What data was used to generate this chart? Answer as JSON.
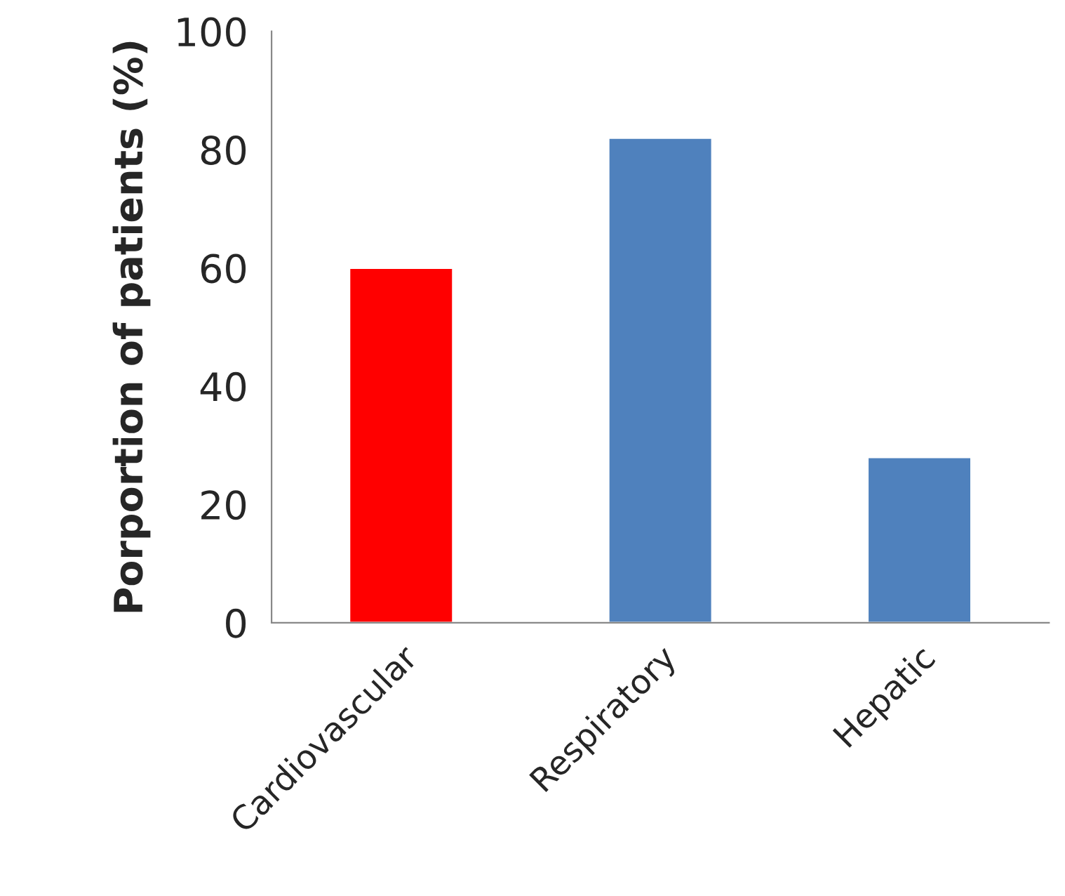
{
  "chart_data": {
    "type": "bar",
    "ylabel": "Porportion of patients (%)",
    "categories": [
      "Cardiovascular",
      "Respiratory",
      "Hepatic"
    ],
    "values": [
      60,
      82,
      28
    ],
    "colors": [
      "#ff0000",
      "#4f81bd",
      "#4f81bd"
    ],
    "ylim": [
      0,
      100
    ],
    "yticks": [
      0,
      20,
      40,
      60,
      80,
      100
    ],
    "grid": false,
    "legend": false
  }
}
